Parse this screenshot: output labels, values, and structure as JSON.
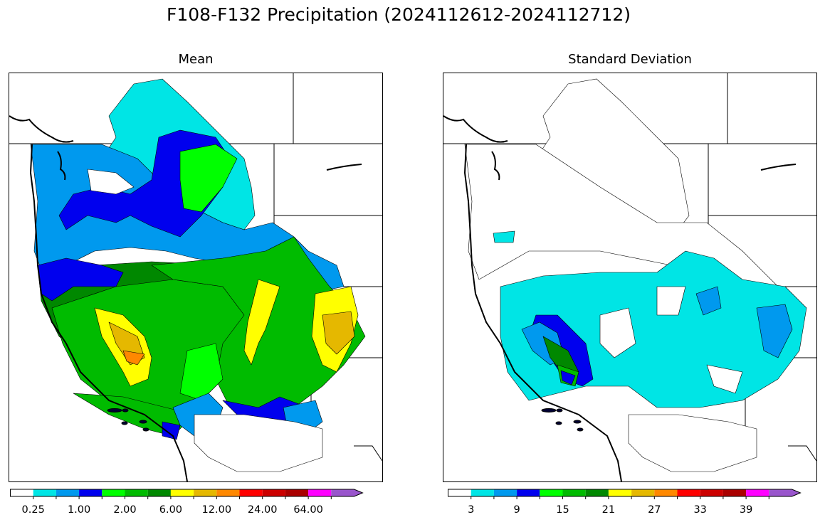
{
  "title": "F108-F132 Precipitation (2024112612-2024112712)",
  "panels": [
    {
      "id": "mean",
      "title": "Mean",
      "colorbar": {
        "colors": [
          "#ffffff",
          "#00e5e5",
          "#0099ee",
          "#0000ee",
          "#00ff00",
          "#00bb00",
          "#008800",
          "#ffff00",
          "#e5b800",
          "#ff8800",
          "#ff0000",
          "#cc0000",
          "#aa0000",
          "#ff00ff",
          "#9955cc"
        ],
        "tick_labels": [
          "0.25",
          "1.00",
          "2.00",
          "6.00",
          "12.00",
          "24.00",
          "64.00"
        ],
        "extend": "max"
      }
    },
    {
      "id": "stddev",
      "title": "Standard Deviation",
      "colorbar": {
        "colors": [
          "#ffffff",
          "#00e5e5",
          "#0099ee",
          "#0000ee",
          "#00ff00",
          "#00bb00",
          "#008800",
          "#ffff00",
          "#e5b800",
          "#ff8800",
          "#ff0000",
          "#cc0000",
          "#aa0000",
          "#ff00ff",
          "#9955cc"
        ],
        "tick_labels": [
          "3",
          "9",
          "15",
          "21",
          "27",
          "33",
          "39"
        ],
        "extend": "max"
      }
    }
  ]
}
